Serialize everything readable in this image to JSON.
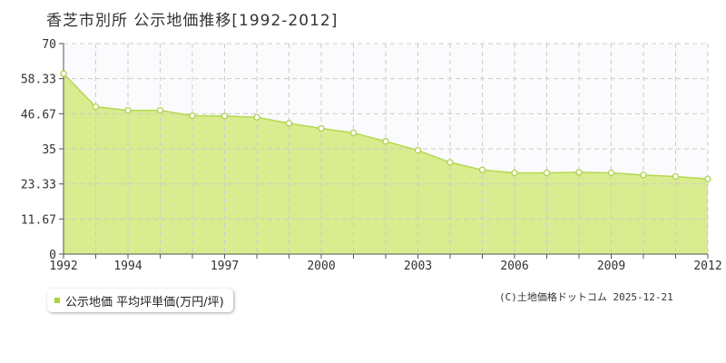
{
  "title": "香芝市別所 公示地価推移[1992-2012]",
  "legend_label": "公示地価 平均坪単価(万円/坪)",
  "copyright": "(C)土地価格ドットコム 2025-12-21",
  "colors": {
    "fill": "#d9ec8f",
    "line": "#b4d94f",
    "marker_stroke": "#a9d043",
    "plot_bg": "#fbfafc",
    "grid": "#cccccc",
    "legend_swatch": "#a8d63c"
  },
  "chart_data": {
    "type": "area",
    "title": "香芝市別所 公示地価推移[1992-2012]",
    "xlabel": "",
    "ylabel": "",
    "xlim": [
      1992,
      2012
    ],
    "ylim": [
      0,
      70
    ],
    "x_ticks": [
      "1992",
      "1994",
      "1997",
      "2000",
      "2003",
      "2006",
      "2009",
      "2012"
    ],
    "y_ticks": [
      "0",
      "11.67",
      "23.33",
      "35",
      "46.67",
      "58.33",
      "70"
    ],
    "grid": true,
    "legend_position": "bottom-left",
    "series": [
      {
        "name": "公示地価 平均坪単価(万円/坪)",
        "x": [
          1992,
          1993,
          1994,
          1995,
          1996,
          1997,
          1998,
          1999,
          2000,
          2001,
          2002,
          2003,
          2004,
          2005,
          2006,
          2007,
          2008,
          2009,
          2010,
          2011,
          2012
        ],
        "values": [
          60.0,
          49.0,
          47.8,
          47.8,
          46.0,
          45.9,
          45.5,
          43.5,
          41.8,
          40.3,
          37.5,
          34.5,
          30.5,
          28.0,
          27.0,
          27.0,
          27.2,
          27.0,
          26.3,
          25.8,
          25.0
        ]
      }
    ]
  }
}
